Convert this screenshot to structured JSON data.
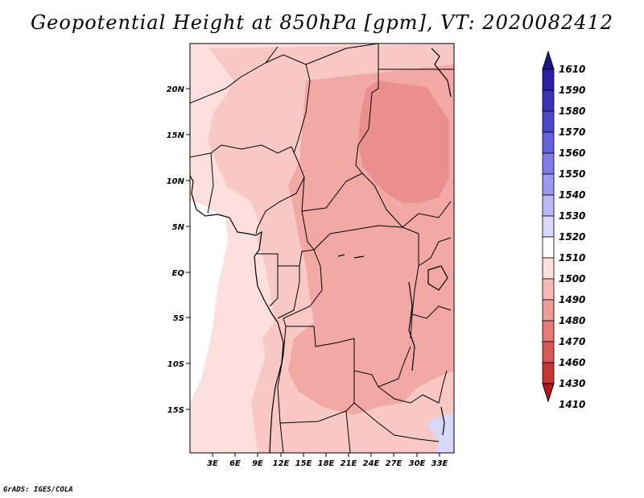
{
  "title": "Geopotential Height at 850hPa [gpm], VT: 2020082412",
  "credit": "GrADS: IGES/COLA",
  "map": {
    "lat_labels": [
      "20N",
      "15N",
      "10N",
      "5N",
      "EQ",
      "5S",
      "10S",
      "15S"
    ],
    "lon_labels": [
      "3E",
      "6E",
      "9E",
      "12E",
      "15E",
      "18E",
      "21E",
      "24E",
      "27E",
      "30E",
      "33E"
    ]
  },
  "colorbar": {
    "levels": [
      "1610",
      "1590",
      "1580",
      "1570",
      "1560",
      "1550",
      "1540",
      "1530",
      "1520",
      "1510",
      "1500",
      "1490",
      "1480",
      "1470",
      "1460",
      "1430",
      "1410"
    ],
    "colors": [
      "#1b1585",
      "#2a1fa5",
      "#3a33b9",
      "#4d48cb",
      "#6461dd",
      "#7f7ce8",
      "#9c9af0",
      "#bbb9f6",
      "#d8d8fb",
      "#ffffff",
      "#fde0dd",
      "#f6b9b3",
      "#ee9c96",
      "#e37a76",
      "#d75855",
      "#c73534",
      "#b3181b"
    ]
  },
  "field_colors": {
    "c1500": "#fde0dd",
    "c1490": "#f8c8c4",
    "c1480": "#f2a9a5",
    "c1470": "#e98f8d",
    "c1520": "#d8d8fb"
  }
}
